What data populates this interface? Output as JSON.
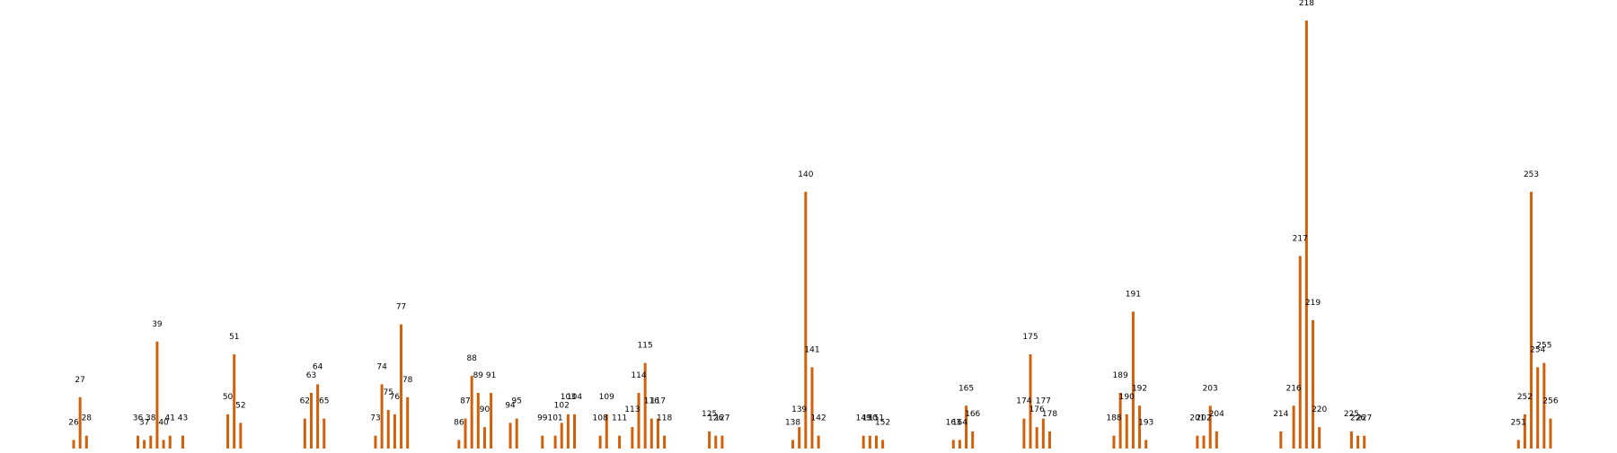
{
  "chart_data": {
    "type": "bar",
    "title": "",
    "xlabel": "",
    "ylabel": "",
    "bar_color": "#d2600a",
    "label_color": "#000000",
    "ylim": [
      0,
      100
    ],
    "axes_visible": false,
    "grid": false,
    "x": [
      26,
      27,
      28,
      36,
      37,
      38,
      39,
      40,
      41,
      43,
      50,
      51,
      52,
      62,
      63,
      64,
      65,
      73,
      74,
      75,
      76,
      77,
      78,
      86,
      87,
      88,
      89,
      90,
      91,
      94,
      95,
      99,
      101,
      102,
      103,
      104,
      108,
      109,
      111,
      113,
      114,
      115,
      116,
      117,
      118,
      125,
      126,
      127,
      138,
      139,
      140,
      141,
      142,
      149,
      150,
      151,
      152,
      163,
      164,
      165,
      166,
      174,
      175,
      176,
      177,
      178,
      188,
      189,
      190,
      191,
      192,
      193,
      201,
      202,
      203,
      204,
      214,
      216,
      217,
      218,
      219,
      220,
      225,
      226,
      227,
      251,
      252,
      253,
      254,
      255,
      256
    ],
    "labels": [
      "26",
      "27",
      "28",
      "36",
      "37",
      "38",
      "39",
      "40",
      "41",
      "43",
      "50",
      "51",
      "52",
      "62",
      "63",
      "64",
      "65",
      "73",
      "74",
      "75",
      "76",
      "77",
      "78",
      "86",
      "87",
      "88",
      "89",
      "90",
      "91",
      "94",
      "95",
      "99",
      "101",
      "102",
      "103",
      "104",
      "108",
      "109",
      "111",
      "113",
      "114",
      "115",
      "116",
      "117",
      "118",
      "125",
      "126",
      "127",
      "138",
      "139",
      "140",
      "141",
      "142",
      "149",
      "150",
      "151",
      "152",
      "163",
      "164",
      "165",
      "166",
      "174",
      "175",
      "176",
      "177",
      "178",
      "188",
      "189",
      "190",
      "191",
      "192",
      "193",
      "201",
      "202",
      "203",
      "204",
      "214",
      "216",
      "217",
      "218",
      "219",
      "220",
      "225",
      "226",
      "227",
      "251",
      "252",
      "253",
      "254",
      "255",
      "256"
    ],
    "values": [
      2,
      12,
      3,
      3,
      2,
      3,
      25,
      2,
      3,
      3,
      8,
      22,
      6,
      7,
      13,
      15,
      7,
      3,
      15,
      9,
      8,
      29,
      12,
      2,
      7,
      17,
      13,
      5,
      13,
      6,
      7,
      3,
      3,
      6,
      8,
      8,
      3,
      8,
      3,
      5,
      13,
      20,
      7,
      7,
      3,
      4,
      3,
      3,
      2,
      5,
      60,
      19,
      3,
      3,
      3,
      3,
      2,
      2,
      2,
      10,
      4,
      7,
      22,
      5,
      7,
      4,
      3,
      13,
      8,
      32,
      10,
      2,
      3,
      3,
      10,
      4,
      4,
      10,
      45,
      100,
      30,
      5,
      4,
      3,
      3,
      2,
      8,
      60,
      19,
      20,
      7
    ]
  }
}
